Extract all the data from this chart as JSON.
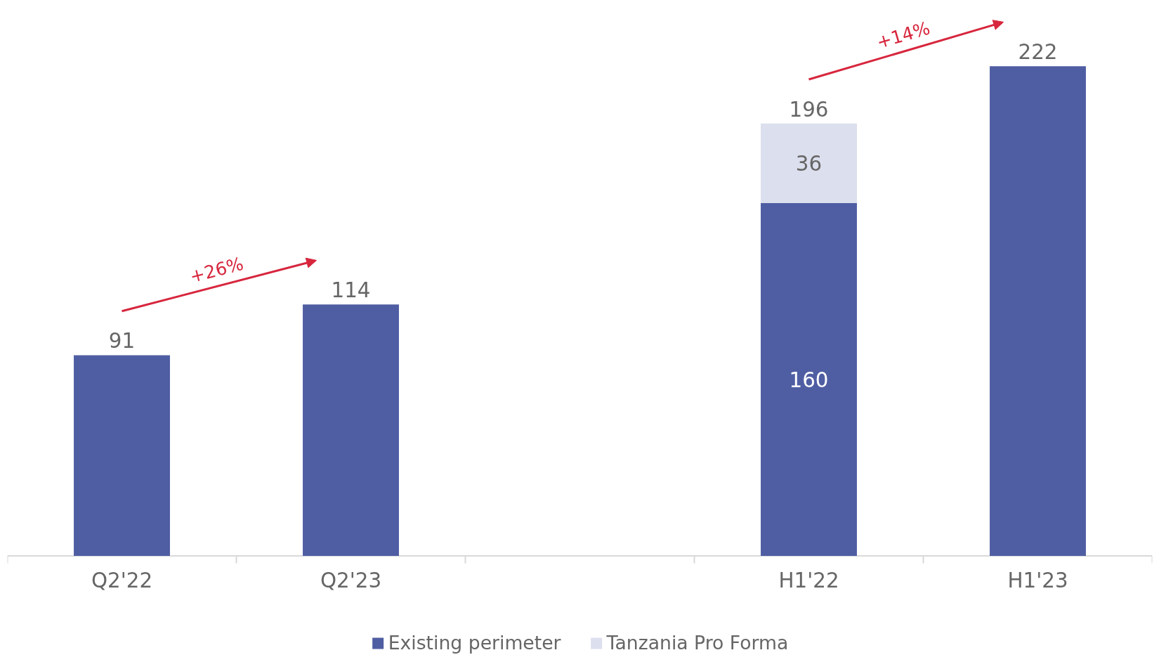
{
  "chart_data": {
    "type": "bar",
    "stacked": true,
    "categories": [
      "Q2'22",
      "Q2'23",
      null,
      "H1'22",
      "H1'23"
    ],
    "series": [
      {
        "name": "Existing perimeter",
        "color": "#4f5ea3",
        "values": [
          91,
          114,
          null,
          160,
          222
        ],
        "value_labels": [
          null,
          null,
          null,
          "160",
          null
        ]
      },
      {
        "name": "Tanzania Pro Forma",
        "color": "#dcdfed",
        "values": [
          null,
          null,
          null,
          36,
          null
        ],
        "value_labels": [
          null,
          null,
          null,
          "36",
          null
        ]
      }
    ],
    "totals": [
      "91",
      "114",
      null,
      "196",
      "222"
    ],
    "annotations": [
      "+26%",
      "+14%"
    ],
    "legend": "bottom",
    "grid": false
  }
}
